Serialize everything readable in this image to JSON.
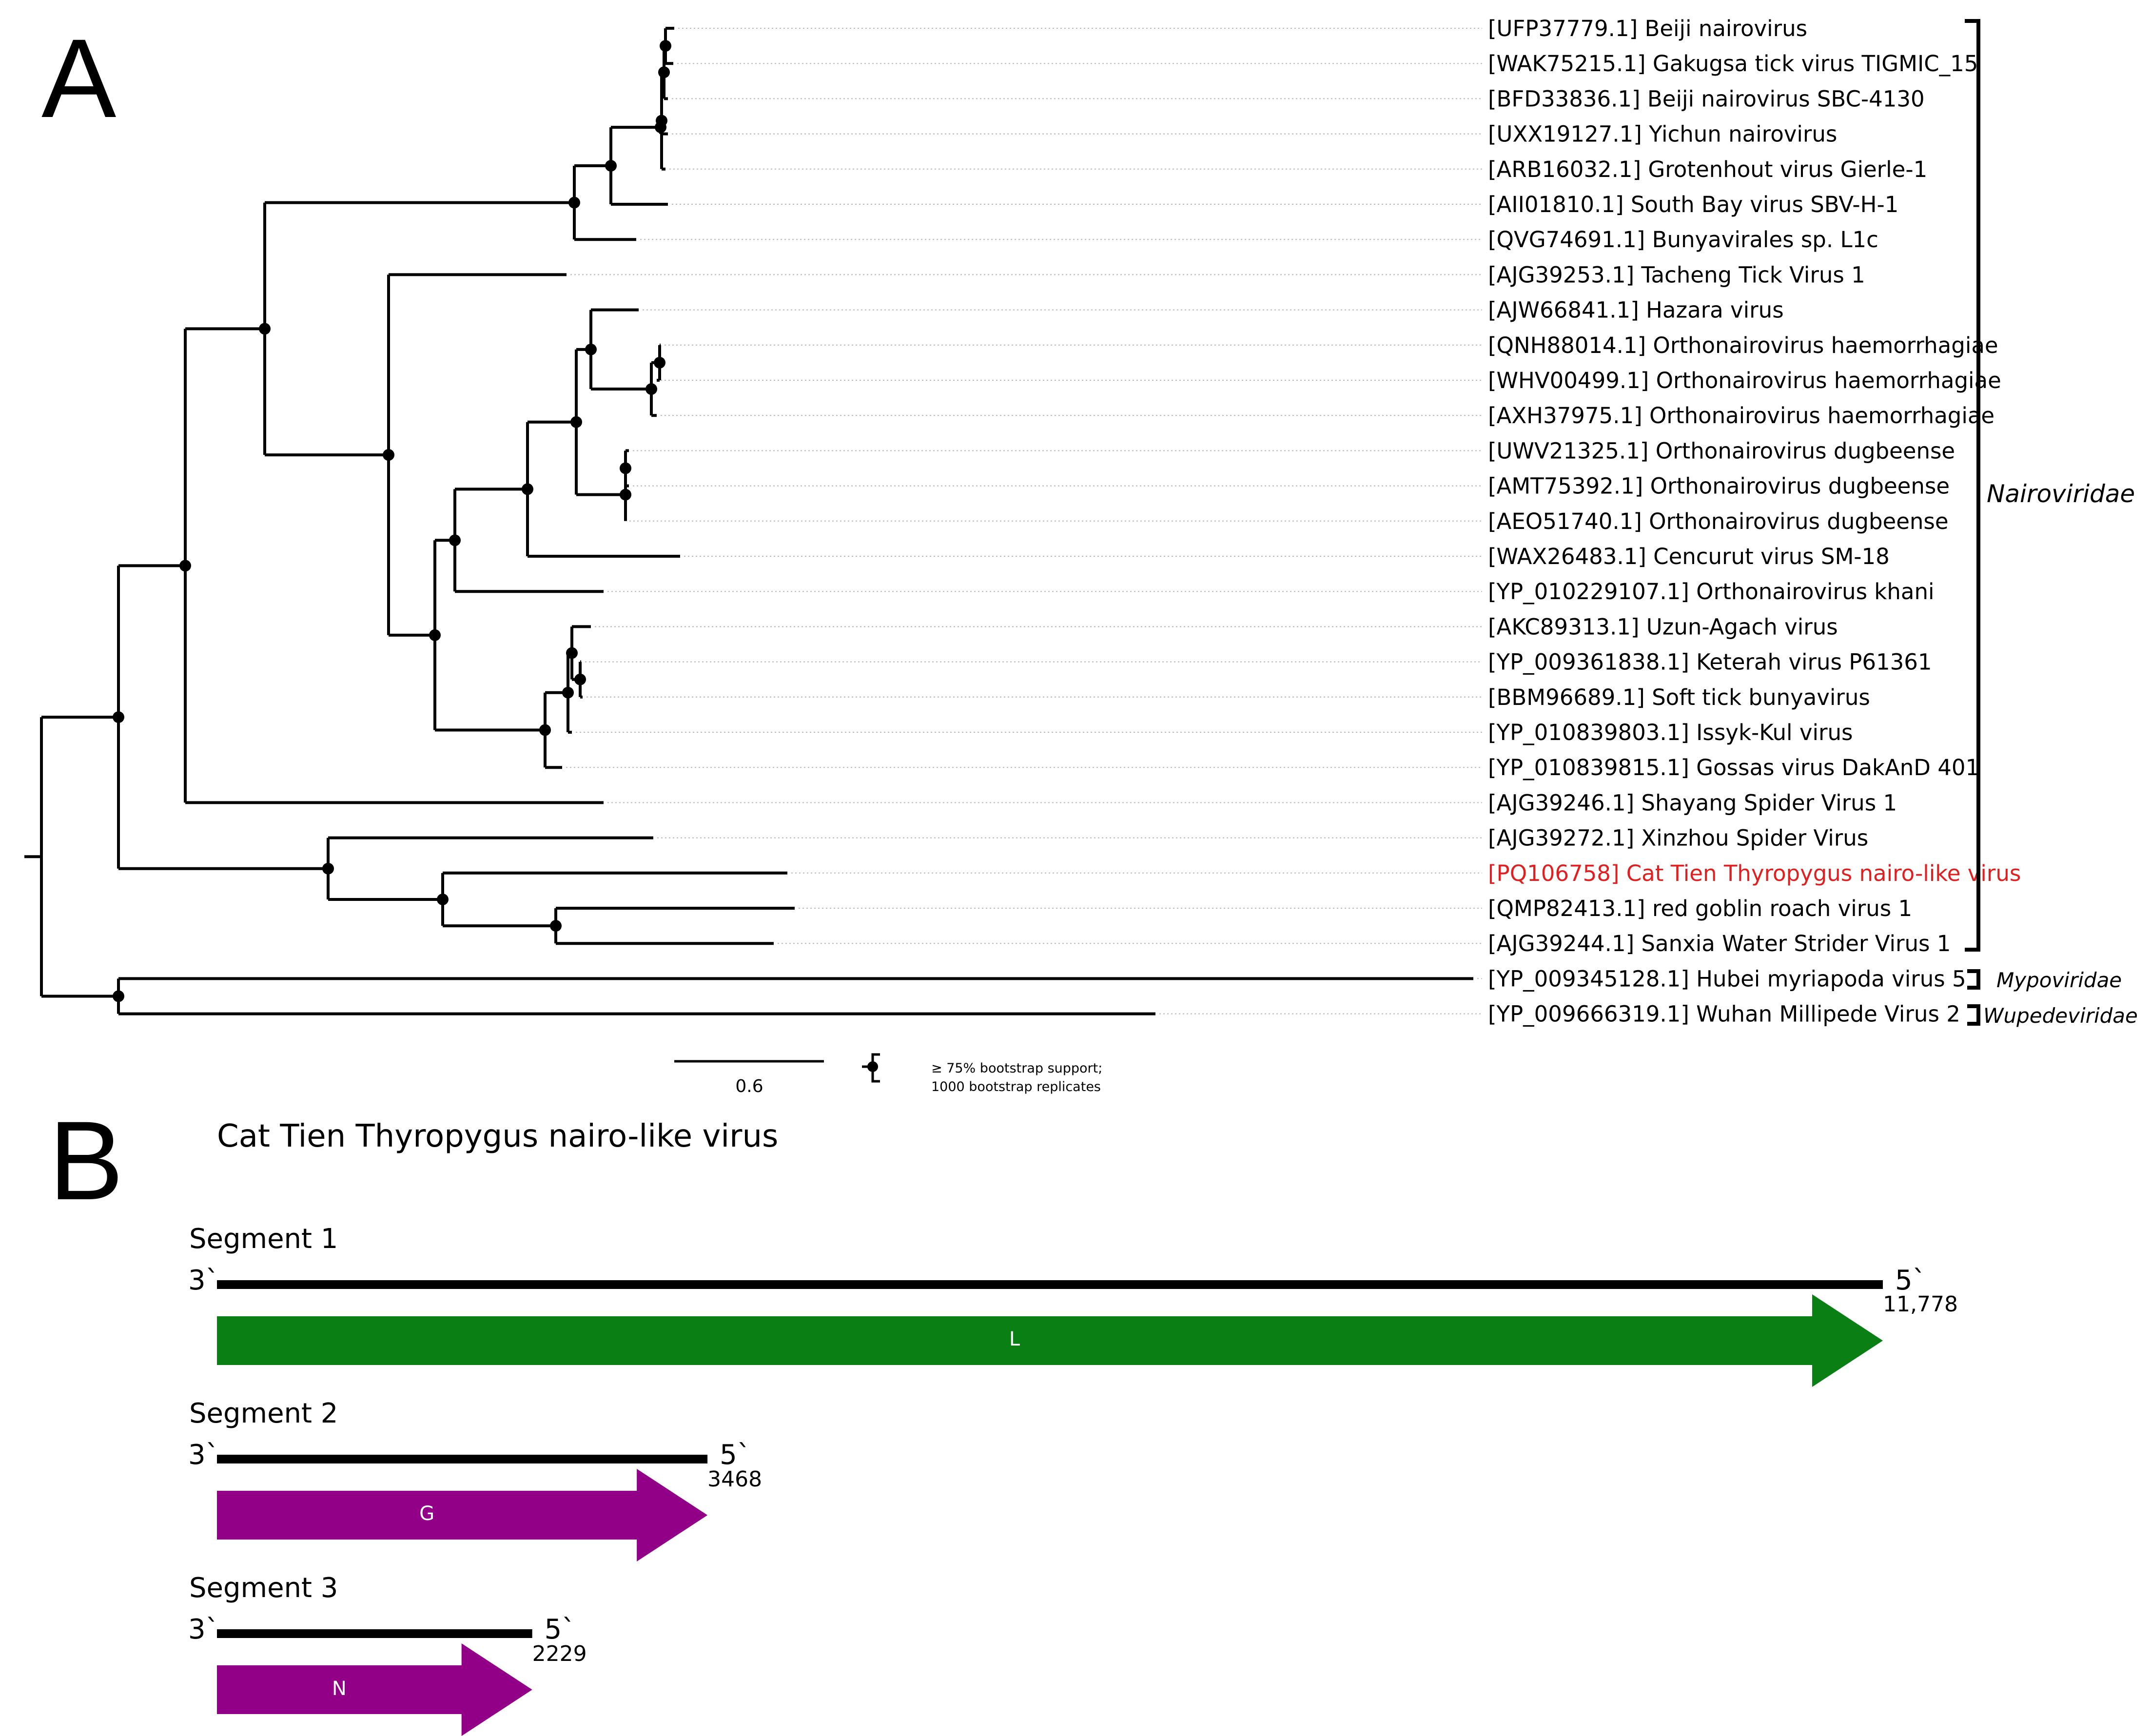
{
  "panels": {
    "a": "A",
    "b": "B"
  },
  "colors": {
    "highlight": "#e02020",
    "gene_L": "#0a7f14",
    "gene_G": "#930088",
    "gene_N": "#930088"
  },
  "tree": {
    "taxa": [
      {
        "label": "[UFP37779.1] Beiji nairovirus"
      },
      {
        "label": "[WAK75215.1] Gakugsa tick virus TIGMIC_15"
      },
      {
        "label": "[BFD33836.1] Beiji nairovirus SBC-4130"
      },
      {
        "label": "[UXX19127.1] Yichun nairovirus"
      },
      {
        "label": "[ARB16032.1] Grotenhout virus Gierle-1"
      },
      {
        "label": "[AII01810.1] South Bay virus SBV-H-1"
      },
      {
        "label": "[QVG74691.1] Bunyavirales sp. L1c"
      },
      {
        "label": "[AJG39253.1] Tacheng Tick Virus 1"
      },
      {
        "label": "[AJW66841.1] Hazara virus"
      },
      {
        "label": "[QNH88014.1] Orthonairovirus haemorrhagiae"
      },
      {
        "label": "[WHV00499.1] Orthonairovirus haemorrhagiae"
      },
      {
        "label": "[AXH37975.1] Orthonairovirus haemorrhagiae"
      },
      {
        "label": "[UWV21325.1] Orthonairovirus dugbeense"
      },
      {
        "label": "[AMT75392.1] Orthonairovirus dugbeense"
      },
      {
        "label": "[AEO51740.1] Orthonairovirus dugbeense"
      },
      {
        "label": "[WAX26483.1] Cencurut virus SM-18"
      },
      {
        "label": "[YP_010229107.1] Orthonairovirus khani"
      },
      {
        "label": "[AKC89313.1] Uzun-Agach virus"
      },
      {
        "label": "[YP_009361838.1] Keterah virus P61361"
      },
      {
        "label": "[BBM96689.1] Soft tick bunyavirus"
      },
      {
        "label": "[YP_010839803.1] Issyk-Kul virus"
      },
      {
        "label": "[YP_010839815.1] Gossas virus DakAnD 401"
      },
      {
        "label": "[AJG39246.1] Shayang Spider Virus 1"
      },
      {
        "label": "[AJG39272.1] Xinzhou Spider Virus"
      },
      {
        "label": "[PQ106758] Cat Tien Thyropygus nairo-like virus",
        "highlight": true
      },
      {
        "label": "[QMP82413.1] red goblin roach virus 1"
      },
      {
        "label": "[AJG39244.1] Sanxia Water Strider Virus 1"
      },
      {
        "label": "[YP_009345128.1] Hubei myriapoda virus 5"
      },
      {
        "label": "[YP_009666319.1] Wuhan Millipede Virus 2"
      }
    ],
    "families": [
      {
        "name": "Nairoviridae"
      },
      {
        "name": "Mypoviridae"
      },
      {
        "name": "Wupedeviridae"
      }
    ],
    "scale_bar_label": "0.6",
    "legend_line1": "≥ 75% bootstrap support;",
    "legend_line2": "1000 bootstrap replicates"
  },
  "genome": {
    "title": "Cat Tien Thyropygus nairo-like virus",
    "segments": [
      {
        "label": "Segment 1",
        "end3": "3`",
        "end5": "5`",
        "length": 11778,
        "length_label": "11,778",
        "gene": "L"
      },
      {
        "label": "Segment 2",
        "end3": "3`",
        "end5": "5`",
        "length": 3468,
        "length_label": "3468",
        "gene": "G"
      },
      {
        "label": "Segment 3",
        "end3": "3`",
        "end5": "5`",
        "length": 2229,
        "length_label": "2229",
        "gene": "N"
      }
    ]
  }
}
